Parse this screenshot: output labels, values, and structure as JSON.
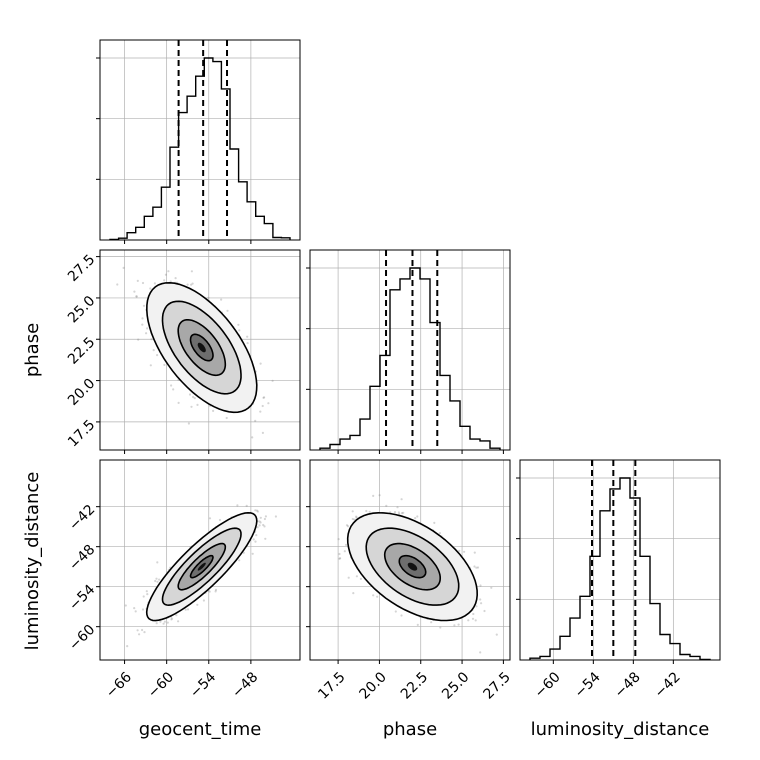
{
  "chart_data": {
    "type": "corner",
    "parameters": [
      "geocent_time",
      "phase",
      "luminosity_distance"
    ],
    "labels": {
      "geocent_time": "geocent_time",
      "phase": "phase",
      "luminosity_distance": "luminosity_distance"
    },
    "ranges": {
      "geocent_time": [
        -69.5,
        -41.0
      ],
      "phase": [
        15.8,
        27.9
      ],
      "luminosity_distance": [
        -65.0,
        -35.0
      ]
    },
    "ticks": {
      "geocent_time": [
        -66,
        -60,
        -54,
        -48
      ],
      "phase": [
        17.5,
        20.0,
        22.5,
        25.0,
        27.5
      ],
      "luminosity_distance": [
        -60,
        -54,
        -48,
        -42
      ]
    },
    "tick_labels": {
      "geocent_time": [
        "−66",
        "−60",
        "−54",
        "−48"
      ],
      "phase": [
        "17.5",
        "20.0",
        "22.5",
        "25.0",
        "27.5"
      ],
      "luminosity_distance": [
        "−60",
        "−54",
        "−48",
        "−42"
      ]
    },
    "marginals": {
      "geocent_time": {
        "quantiles": [
          -58.3,
          -54.8,
          -51.4
        ],
        "hist_counts": [
          0.003,
          0.01,
          0.04,
          0.07,
          0.13,
          0.18,
          0.29,
          0.51,
          0.7,
          0.79,
          0.9,
          1.0,
          0.98,
          0.83,
          0.5,
          0.32,
          0.21,
          0.13,
          0.09,
          0.014,
          0.012
        ]
      },
      "phase": {
        "quantiles": [
          20.4,
          22.0,
          23.5
        ],
        "hist_counts": [
          0.01,
          0.03,
          0.06,
          0.08,
          0.17,
          0.35,
          0.52,
          0.88,
          0.94,
          1.0,
          0.94,
          0.7,
          0.41,
          0.27,
          0.13,
          0.06,
          0.05,
          0.01
        ]
      },
      "luminosity_distance": {
        "quantiles": [
          -54.2,
          -51.0,
          -47.7
        ],
        "hist_counts": [
          0.01,
          0.02,
          0.06,
          0.13,
          0.23,
          0.35,
          0.57,
          0.82,
          0.94,
          1.0,
          0.89,
          0.57,
          0.31,
          0.14,
          0.09,
          0.03,
          0.02,
          0.003
        ]
      }
    },
    "joint": [
      {
        "x": "geocent_time",
        "y": "phase",
        "mean": [
          -55.0,
          22.0
        ],
        "std": [
          3.2,
          1.6
        ],
        "correlation": -0.6
      },
      {
        "x": "geocent_time",
        "y": "luminosity_distance",
        "mean": [
          -55.0,
          -51.0
        ],
        "std": [
          3.2,
          3.3
        ],
        "correlation": 0.85
      },
      {
        "x": "phase",
        "y": "luminosity_distance",
        "mean": [
          22.0,
          -51.0
        ],
        "std": [
          1.6,
          3.3
        ],
        "correlation": -0.5
      }
    ],
    "grid": true
  }
}
